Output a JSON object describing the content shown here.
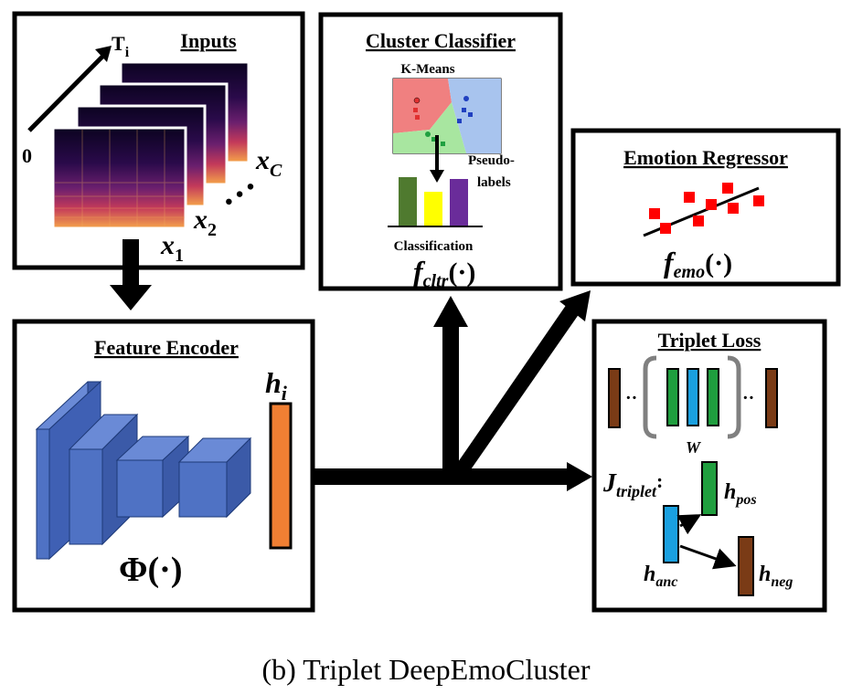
{
  "inputs": {
    "title": "Inputs",
    "time_label": "T",
    "time_subscript": "i",
    "zero_label": "0",
    "x1": "x",
    "x1_sub": "1",
    "x2": "x",
    "x2_sub": "2",
    "xc": "x",
    "xc_sub": "C",
    "dots": "• • •"
  },
  "encoder": {
    "title": "Feature Encoder",
    "phi_label": "Φ(·)",
    "h_label": "h",
    "h_sub": "i"
  },
  "cluster": {
    "title": "Cluster Classifier",
    "kmeans_label": "K-Means",
    "pseudo_label_1": "Pseudo-",
    "pseudo_label_2": "labels",
    "classification_label": "Classification",
    "f_label": "f",
    "f_sub": "cltr",
    "f_arg": "(·)"
  },
  "emotion": {
    "title": "Emotion Regressor",
    "f_label": "f",
    "f_sub": "emo",
    "f_arg": "(·)"
  },
  "triplet": {
    "title": "Triplet Loss",
    "window_label": "W",
    "j_label": "J",
    "j_sub": "triplet",
    "j_colon": ":",
    "pos_label": "h",
    "pos_sub": "pos",
    "anc_label": "h",
    "anc_sub": "anc",
    "neg_label": "h",
    "neg_sub": "neg"
  },
  "caption": "(b) Triplet DeepEmoCluster",
  "colors": {
    "encoder_blue": "#4f72c4",
    "hidden_orange": "#f07f33",
    "pos_green": "#1f9e3e",
    "anc_blue": "#1aa0e0",
    "neg_brown": "#7a3b16",
    "bar_green": "#4f7a2f",
    "bar_yellow": "#ffff00",
    "bar_purple": "#6a2c9a",
    "kmeans_red": "#f08080",
    "kmeans_green": "#a8e6a0",
    "kmeans_blue": "#a8c4ee",
    "emo_points": "#ff0000"
  }
}
